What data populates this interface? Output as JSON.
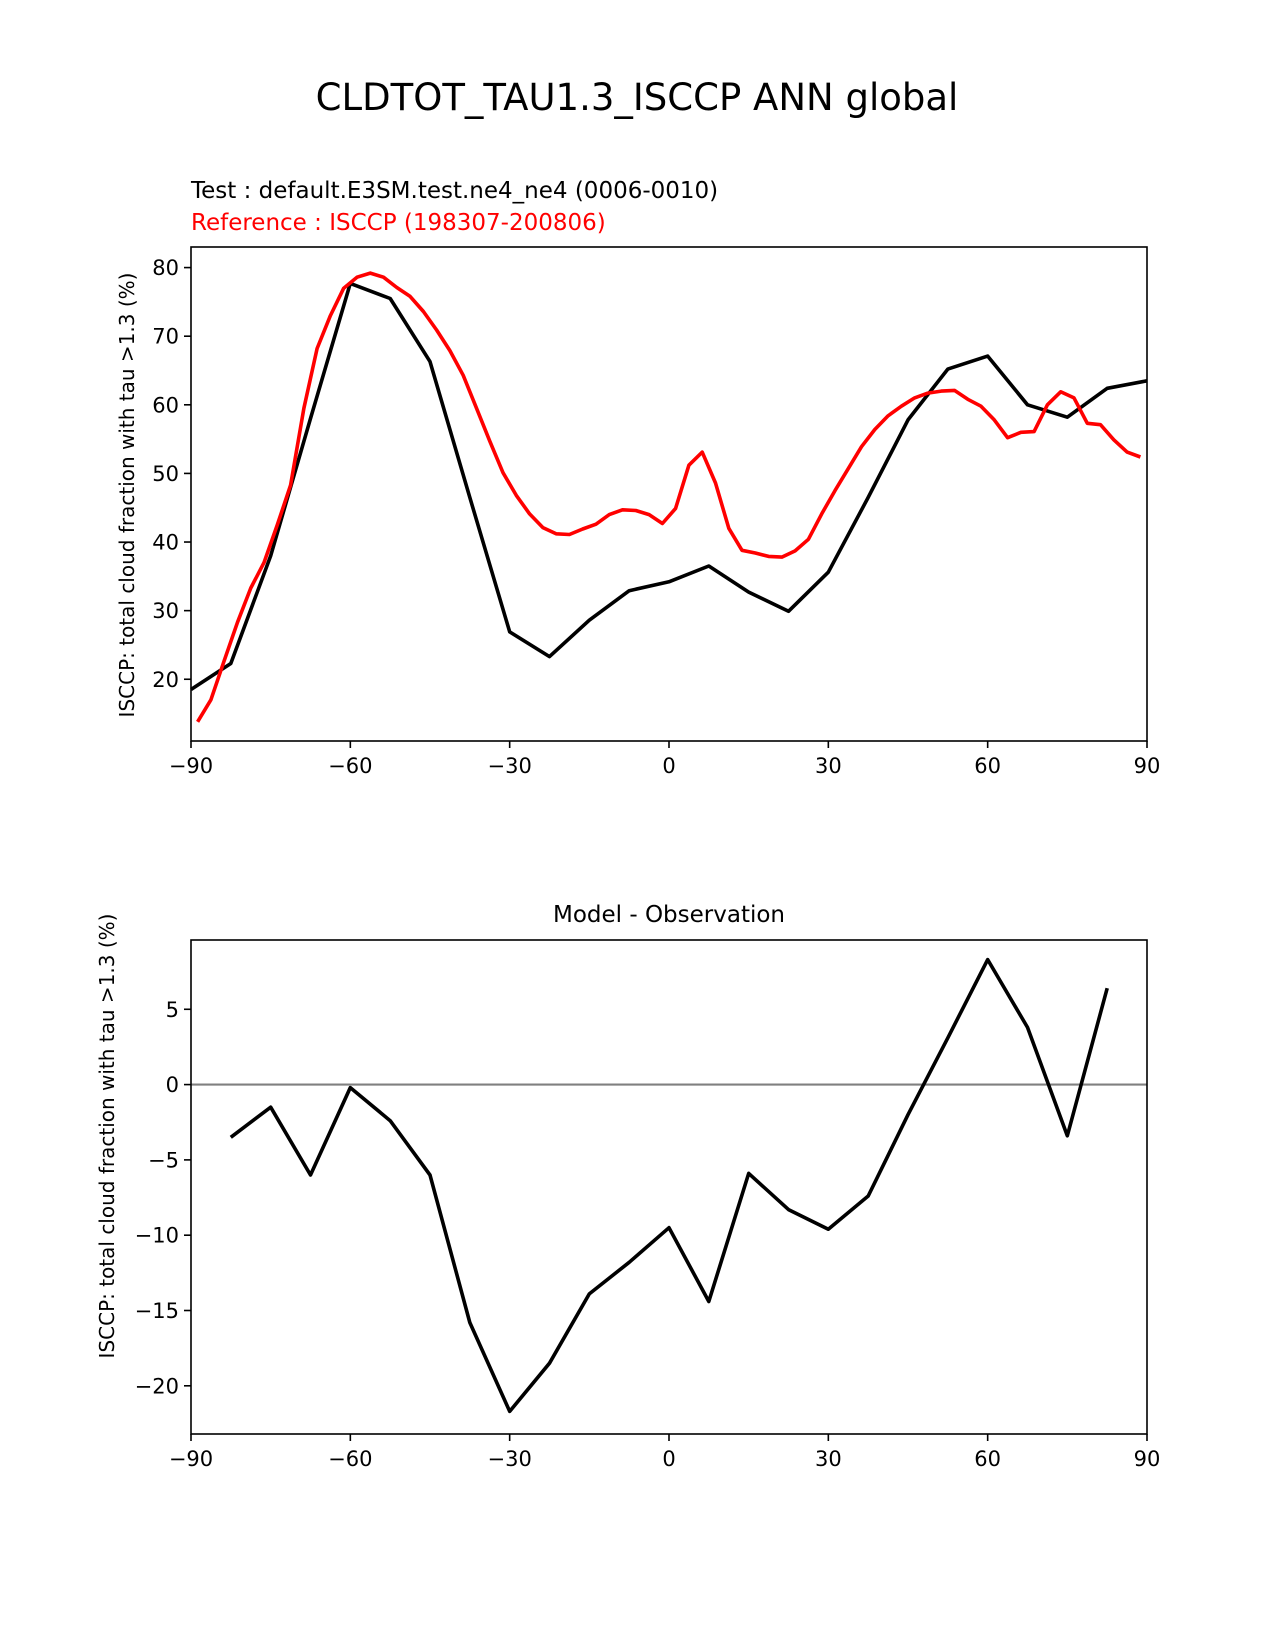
{
  "page_title": "CLDTOT_TAU1.3_ISCCP ANN global",
  "colors": {
    "test": "#000000",
    "reference": "#ff0000",
    "zero_line": "#808080",
    "axes": "#000000"
  },
  "chart_data": [
    {
      "type": "line",
      "test_label": "Test : default.E3SM.test.ne4_ne4 (0006-0010)",
      "reference_label": "Reference : ISCCP (198307-200806)",
      "ylabel": "ISCCP: total cloud fraction with tau >1.3 (%)",
      "xlabel": "",
      "xlim": [
        -90,
        90
      ],
      "ylim": [
        11,
        83
      ],
      "xticks": [
        -90,
        -60,
        -30,
        0,
        30,
        60,
        90
      ],
      "xtick_labels": [
        "−90",
        "−60",
        "−30",
        "0",
        "30",
        "60",
        "90"
      ],
      "yticks": [
        20,
        30,
        40,
        50,
        60,
        70,
        80
      ],
      "ytick_labels": [
        "20",
        "30",
        "40",
        "50",
        "60",
        "70",
        "80"
      ],
      "series": [
        {
          "name": "Test",
          "color": "#000000",
          "x": [
            -90,
            -82.5,
            -75,
            -67.5,
            -60,
            -52.5,
            -45,
            -37.5,
            -30,
            -22.5,
            -15,
            -7.5,
            0,
            7.5,
            15,
            22.5,
            30,
            37.5,
            45,
            52.5,
            60,
            67.5,
            75,
            82.5,
            90
          ],
          "y": [
            18.5,
            22.3,
            38,
            58,
            77.7,
            75.5,
            66.3,
            46.5,
            26.9,
            23.3,
            28.6,
            32.9,
            34.2,
            36.5,
            32.7,
            29.9,
            35.6,
            46.5,
            57.8,
            65.2,
            67.1,
            60.0,
            58.2,
            62.4,
            63.5
          ]
        },
        {
          "name": "Reference",
          "color": "#ff0000",
          "x": [
            -88.75,
            -86.25,
            -83.75,
            -81.25,
            -78.75,
            -76.25,
            -73.75,
            -71.25,
            -68.75,
            -66.25,
            -63.75,
            -61.25,
            -58.75,
            -56.25,
            -53.75,
            -51.25,
            -48.75,
            -46.25,
            -43.75,
            -41.25,
            -38.75,
            -36.25,
            -33.75,
            -31.25,
            -28.75,
            -26.25,
            -23.75,
            -21.25,
            -18.75,
            -16.25,
            -13.75,
            -11.25,
            -8.75,
            -6.25,
            -3.75,
            -1.25,
            1.25,
            3.75,
            6.25,
            8.75,
            11.25,
            13.75,
            16.25,
            18.75,
            21.25,
            23.75,
            26.25,
            28.75,
            31.25,
            33.75,
            36.25,
            38.75,
            41.25,
            43.75,
            46.25,
            48.75,
            51.25,
            53.75,
            56.25,
            58.75,
            61.25,
            63.75,
            66.25,
            68.75,
            71.25,
            73.75,
            76.25,
            78.75,
            81.25,
            83.75,
            86.25,
            88.75
          ],
          "y": [
            13.8,
            17,
            22.7,
            28.3,
            33.3,
            37,
            42.5,
            48.3,
            59.5,
            68.2,
            73.0,
            77.0,
            78.6,
            79.2,
            78.6,
            77.1,
            75.8,
            73.6,
            70.9,
            67.9,
            64.3,
            59.5,
            54.7,
            50.1,
            46.8,
            44.1,
            42.1,
            41.2,
            41.1,
            41.9,
            42.6,
            44,
            44.7,
            44.6,
            44.0,
            42.7,
            44.9,
            51.2,
            53.1,
            48.6,
            42.0,
            38.8,
            38.4,
            37.9,
            37.8,
            38.7,
            40.4,
            44.1,
            47.5,
            50.7,
            53.9,
            56.4,
            58.4,
            59.8,
            61.0,
            61.7,
            62.0,
            62.1,
            60.8,
            59.8,
            57.8,
            55.2,
            56.0,
            56.1,
            60.0,
            61.9,
            61.0,
            57.3,
            57.1,
            54.9,
            53.1,
            52.4
          ]
        }
      ]
    },
    {
      "type": "line",
      "title": "Model - Observation",
      "ylabel": "ISCCP: total cloud fraction with tau >1.3 (%)",
      "xlabel": "",
      "xlim": [
        -90,
        90
      ],
      "ylim": [
        -23.2,
        9.6
      ],
      "xticks": [
        -90,
        -60,
        -30,
        0,
        30,
        60,
        90
      ],
      "xtick_labels": [
        "−90",
        "−60",
        "−30",
        "0",
        "30",
        "60",
        "90"
      ],
      "yticks": [
        -20,
        -15,
        -10,
        -5,
        0,
        5
      ],
      "ytick_labels": [
        "−20",
        "−15",
        "−10",
        "−5",
        "0",
        "5"
      ],
      "zero_line": 0,
      "series": [
        {
          "name": "Model - Observation",
          "color": "#000000",
          "x": [
            -82.5,
            -75,
            -67.5,
            -60,
            -52.5,
            -45,
            -37.5,
            -30,
            -22.5,
            -15,
            -7.5,
            0,
            7.5,
            15,
            22.5,
            30,
            37.5,
            45,
            52.5,
            60,
            67.5,
            75,
            82.5
          ],
          "y": [
            -3.5,
            -1.5,
            -6.0,
            -0.2,
            -2.4,
            -6.0,
            -15.8,
            -21.7,
            -18.5,
            -13.9,
            -11.8,
            -9.5,
            -14.4,
            -5.9,
            -8.3,
            -9.6,
            -7.4,
            -2.0,
            3.1,
            8.3,
            3.8,
            -3.4,
            6.4
          ]
        }
      ]
    }
  ]
}
